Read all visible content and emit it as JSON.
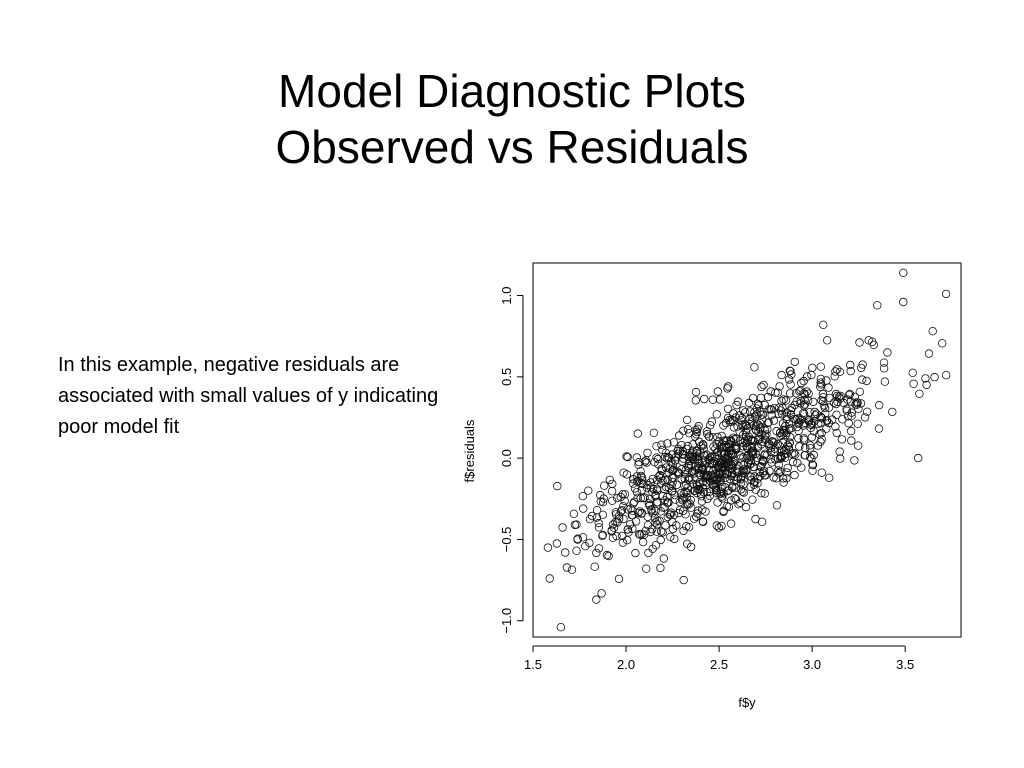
{
  "slide": {
    "title_line1": "Model Diagnostic Plots",
    "title_line2": "Observed vs Residuals",
    "body_text": "In this example, negative residuals are associated with small values of y indicating poor model fit"
  },
  "chart_data": {
    "type": "scatter",
    "title": "",
    "xlabel": "f$y",
    "ylabel": "f$residuals",
    "xlim": [
      1.5,
      3.8
    ],
    "ylim": [
      -1.1,
      1.2
    ],
    "xticks": [
      "1.5",
      "2.0",
      "2.5",
      "3.0",
      "3.5"
    ],
    "yticks": [
      "−1.0",
      "−0.5",
      "0.0",
      "0.5",
      "1.0"
    ],
    "marker": "open-circle",
    "grid": false,
    "n_points": 1000,
    "approx_trend": {
      "slope": 0.55,
      "intercept": -1.4,
      "residual_sd": 0.17
    },
    "x_distribution": {
      "mean": 2.55,
      "sd": 0.38
    },
    "highlight_points": [
      [
        1.65,
        -1.04
      ],
      [
        1.84,
        -0.87
      ],
      [
        1.58,
        -0.55
      ],
      [
        1.59,
        -0.74
      ],
      [
        3.49,
        1.14
      ],
      [
        3.72,
        1.01
      ],
      [
        3.72,
        0.51
      ],
      [
        3.57,
        0.0
      ],
      [
        2.31,
        -0.75
      ],
      [
        3.49,
        0.96
      ],
      [
        3.35,
        0.94
      ],
      [
        3.06,
        0.82
      ]
    ]
  }
}
